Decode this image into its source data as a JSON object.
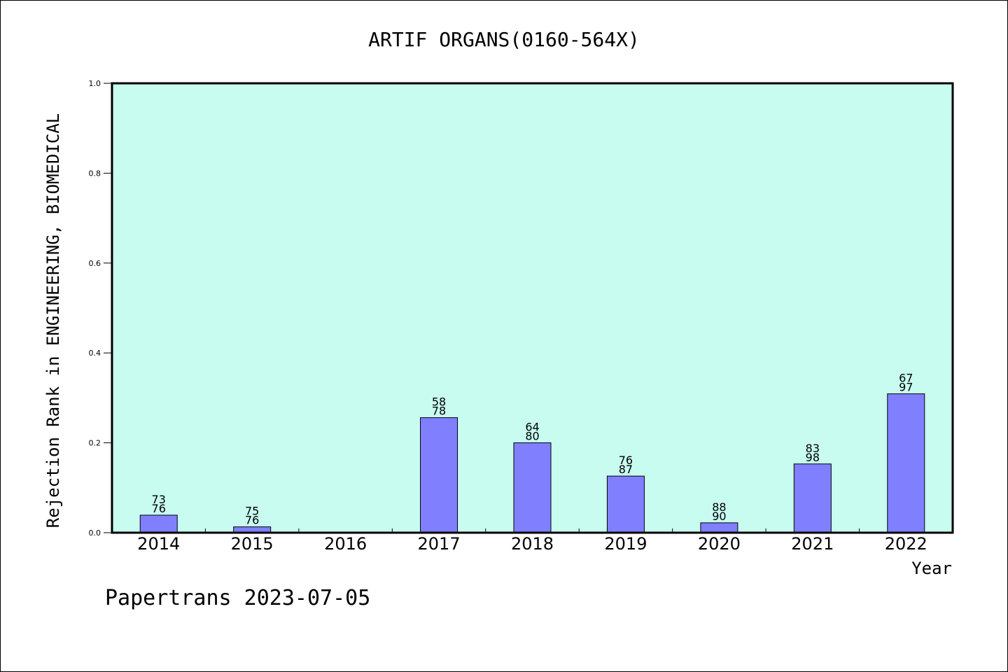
{
  "chart_data": {
    "type": "bar",
    "title": "ARTIF ORGANS(0160-564X)",
    "xlabel": "Year",
    "ylabel": "Rejection Rank in ENGINEERING, BIOMEDICAL",
    "ylim": [
      0,
      1.0
    ],
    "yticks": [
      "0.0",
      "0.2",
      "0.4",
      "0.6",
      "0.8",
      "1.0"
    ],
    "categories": [
      "2014",
      "2015",
      "2016",
      "2017",
      "2018",
      "2019",
      "2020",
      "2021",
      "2022"
    ],
    "values": [
      0.039,
      0.013,
      null,
      0.256,
      0.2,
      0.126,
      0.022,
      0.153,
      0.309
    ],
    "bar_labels": [
      [
        "73",
        "76"
      ],
      [
        "75",
        "76"
      ],
      null,
      [
        "58",
        "78"
      ],
      [
        "64",
        "80"
      ],
      [
        "76",
        "87"
      ],
      [
        "88",
        "90"
      ],
      [
        "83",
        "98"
      ],
      [
        "67",
        "97"
      ]
    ],
    "grid": false,
    "legend": "none",
    "colors": {
      "plot_background": "#c8fcf0",
      "bar_fill": "#8080ff",
      "bar_stroke": "#000000"
    }
  },
  "footer": {
    "watermark": "Papertrans 2023-07-05"
  }
}
